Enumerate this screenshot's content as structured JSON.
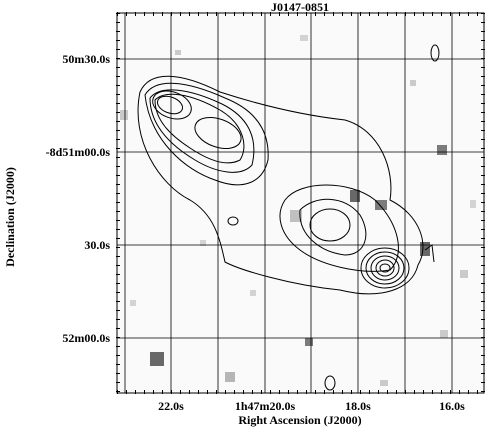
{
  "title": "J0147-0851",
  "x_axis": {
    "label": "Right Ascension (J2000)",
    "tick_labels": [
      "22.0s",
      "1h47m20.0s",
      "18.0s",
      "16.0s"
    ]
  },
  "y_axis": {
    "label": "Declination (J2000)",
    "tick_labels": [
      "50m30.0s",
      "-8d51m00.0s",
      "30.0s",
      "52m00.0s"
    ]
  }
}
